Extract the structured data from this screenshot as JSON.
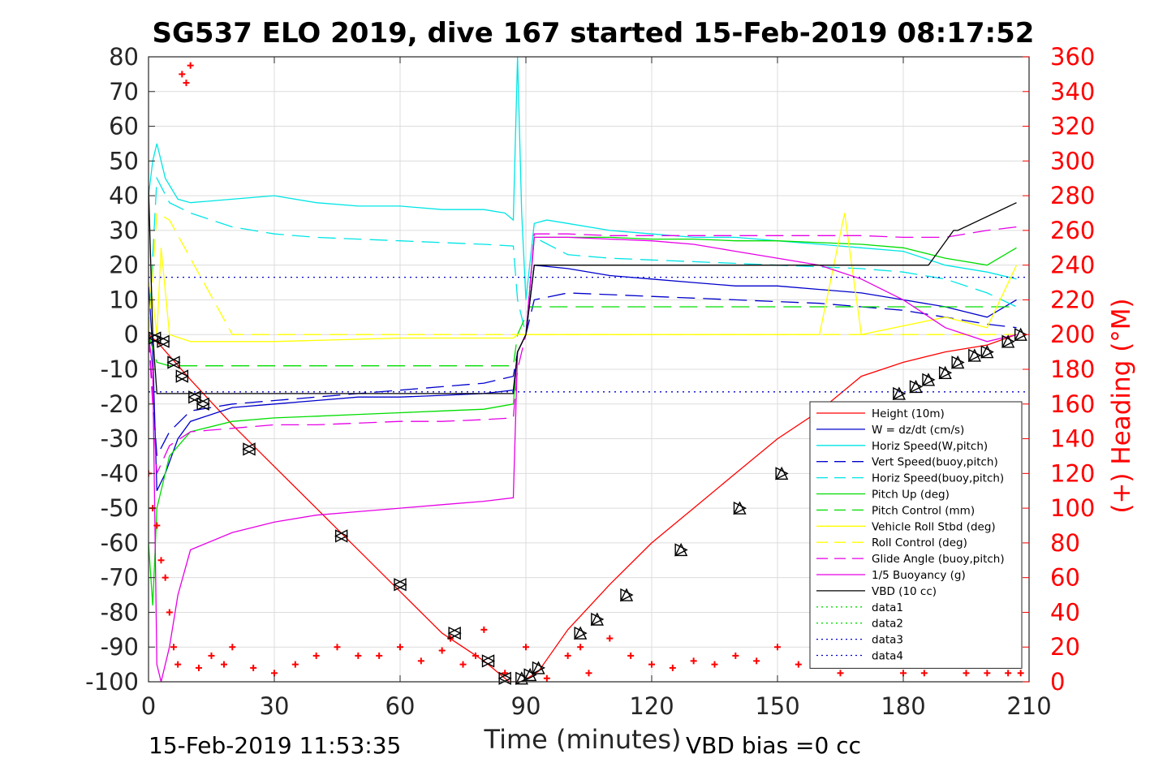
{
  "chart_data": {
    "type": "line",
    "title": "SG537 ELO 2019, dive 167 started 15-Feb-2019 08:17:52",
    "xlabel": "Time (minutes)",
    "ylabel_right": "(+) Heading (°M)",
    "xlim": [
      0,
      210
    ],
    "ylim": [
      -100,
      80
    ],
    "ylim_right": [
      0,
      360
    ],
    "x_ticks": [
      0,
      30,
      60,
      90,
      120,
      150,
      180,
      210
    ],
    "y_ticks": [
      80,
      70,
      60,
      50,
      40,
      30,
      20,
      10,
      0,
      -10,
      -20,
      -30,
      -40,
      -50,
      -60,
      -70,
      -80,
      -90,
      -100
    ],
    "y2_ticks": [
      360,
      340,
      320,
      300,
      280,
      260,
      240,
      220,
      200,
      180,
      160,
      140,
      120,
      100,
      80,
      60,
      40,
      20,
      0
    ],
    "grid": true,
    "legend_position": "bottom-right",
    "footer_left": "15-Feb-2019 11:53:35",
    "footer_right": "VBD bias =0 cc",
    "colors": {
      "red": "#ff0000",
      "blue": "#0000cc",
      "cyan": "#00e5e5",
      "green": "#00dd00",
      "yellow": "#ffff00",
      "magenta": "#e600e6",
      "black": "#000000"
    },
    "series": [
      {
        "name": "Height (10m)",
        "color": "#ff0000",
        "style": "solid",
        "x": [
          0,
          2,
          10,
          20,
          30,
          40,
          50,
          60,
          70,
          80,
          86,
          89,
          93,
          100,
          110,
          120,
          130,
          140,
          150,
          160,
          170,
          180,
          190,
          200,
          207
        ],
        "y": [
          0,
          -2,
          -13,
          -26,
          -38,
          -50,
          -62,
          -74,
          -86,
          -94,
          -100,
          -100,
          -97,
          -85,
          -72,
          -60,
          -50,
          -40,
          -30,
          -22,
          -12,
          -8,
          -5,
          -3,
          0
        ]
      },
      {
        "name": "W = dz/dt (cm/s)",
        "color": "#0000cc",
        "style": "solid",
        "x": [
          0,
          1,
          2,
          4,
          7,
          10,
          20,
          30,
          40,
          50,
          60,
          70,
          80,
          87,
          88,
          90,
          92,
          100,
          110,
          120,
          130,
          140,
          150,
          160,
          170,
          180,
          190,
          200,
          207
        ],
        "y": [
          15,
          -5,
          -45,
          -40,
          -30,
          -25,
          -21,
          -20,
          -19,
          -18,
          -18,
          -17.5,
          -17,
          -16,
          -5,
          0,
          20,
          19,
          17,
          16,
          15,
          14,
          14,
          13,
          12,
          10,
          8,
          5,
          10
        ]
      },
      {
        "name": "Horiz Speed(W,pitch)",
        "color": "#00e5e5",
        "style": "solid",
        "x": [
          0,
          1,
          2,
          4,
          7,
          10,
          20,
          30,
          40,
          50,
          60,
          70,
          80,
          85,
          87,
          88,
          89,
          90,
          92,
          95,
          100,
          110,
          120,
          130,
          140,
          150,
          160,
          170,
          180,
          190,
          200,
          207
        ],
        "y": [
          40,
          50,
          55,
          45,
          39,
          38,
          39,
          40,
          38,
          37,
          37,
          36,
          36,
          35,
          33,
          80,
          35,
          10,
          32,
          33,
          32,
          30,
          29,
          28,
          28,
          27,
          26,
          25,
          24,
          20,
          18,
          16
        ]
      },
      {
        "name": "Vert Speed(buoy,pitch)",
        "color": "#0000cc",
        "style": "dashed",
        "x": [
          0,
          2,
          5,
          10,
          20,
          30,
          40,
          50,
          60,
          70,
          80,
          87,
          88,
          90,
          92,
          100,
          110,
          120,
          130,
          140,
          150,
          160,
          170,
          180,
          190,
          200,
          207
        ],
        "y": [
          0,
          -35,
          -28,
          -22,
          -20,
          -19,
          -18,
          -17,
          -16,
          -15,
          -14,
          -12,
          -5,
          0,
          10,
          12,
          11.5,
          11,
          10.5,
          10,
          9.5,
          9,
          8,
          7,
          5,
          3,
          2
        ]
      },
      {
        "name": "Horiz Speed(buoy,pitch)",
        "color": "#00e5e5",
        "style": "dashed",
        "x": [
          0,
          2,
          5,
          10,
          20,
          30,
          40,
          50,
          60,
          70,
          80,
          87,
          88,
          90,
          92,
          100,
          110,
          120,
          130,
          140,
          150,
          160,
          170,
          180,
          190,
          200,
          207
        ],
        "y": [
          0,
          45,
          38,
          35,
          31,
          29,
          28,
          27.5,
          27,
          26.5,
          26,
          25.5,
          10,
          0,
          28,
          23,
          22,
          21.5,
          21,
          20.5,
          20,
          19.5,
          19,
          18,
          16,
          12,
          8
        ]
      },
      {
        "name": "Pitch Up (deg)",
        "color": "#00dd00",
        "style": "solid",
        "x": [
          0,
          1,
          2,
          5,
          10,
          20,
          30,
          40,
          50,
          60,
          70,
          80,
          87,
          88,
          90,
          92,
          100,
          110,
          120,
          130,
          140,
          150,
          160,
          170,
          180,
          190,
          200,
          207
        ],
        "y": [
          -60,
          -78,
          -50,
          -35,
          -28,
          -25,
          -24,
          -23.5,
          -23,
          -22.5,
          -22,
          -21.5,
          -20,
          -5,
          0,
          28,
          28,
          28,
          27.5,
          27.5,
          27,
          27,
          26.5,
          26,
          25,
          22,
          20,
          25
        ]
      },
      {
        "name": "Pitch Control (mm)",
        "color": "#00dd00",
        "style": "dashed",
        "x": [
          0,
          2,
          5,
          87,
          88,
          91,
          92,
          207
        ],
        "y": [
          0,
          -8,
          -9,
          -9,
          0,
          8,
          8,
          8
        ]
      },
      {
        "name": "Vehicle Roll Stbd (deg)",
        "color": "#ffff00",
        "style": "solid",
        "x": [
          0,
          1,
          2,
          3,
          5,
          10,
          30,
          60,
          87,
          88,
          92,
          100,
          130,
          160,
          166,
          170,
          190,
          200,
          207
        ],
        "y": [
          15,
          10,
          0,
          25,
          0,
          -2,
          -2,
          -1,
          -1,
          0,
          0,
          0,
          0,
          0,
          35,
          0,
          5,
          2,
          20
        ]
      },
      {
        "name": "Roll Control (deg)",
        "color": "#ffff00",
        "style": "dashed",
        "x": [
          0,
          2,
          5,
          20,
          60,
          87,
          92,
          150,
          207
        ],
        "y": [
          0,
          35,
          33,
          0,
          0,
          0,
          0,
          0,
          0
        ]
      },
      {
        "name": "Glide Angle (buoy,pitch)",
        "color": "#e600e6",
        "style": "dashed",
        "x": [
          0,
          2,
          5,
          10,
          20,
          30,
          40,
          50,
          60,
          70,
          80,
          87,
          88,
          90,
          92,
          100,
          110,
          120,
          130,
          140,
          150,
          160,
          170,
          180,
          190,
          200,
          207
        ],
        "y": [
          0,
          -40,
          -32,
          -28,
          -27,
          -26,
          -26,
          -25.5,
          -25,
          -25,
          -24.5,
          -24,
          -10,
          0,
          29,
          29,
          28.5,
          28.5,
          28.5,
          28.5,
          28.5,
          28.5,
          28.5,
          28,
          28,
          30,
          31
        ]
      },
      {
        "name": "1/5 Buoyancy (g)",
        "color": "#e600e6",
        "style": "solid",
        "x": [
          0,
          1,
          2,
          3,
          5,
          7,
          10,
          20,
          30,
          40,
          50,
          60,
          70,
          80,
          87,
          88,
          90,
          92,
          100,
          110,
          120,
          130,
          140,
          150,
          160,
          170,
          180,
          190,
          200,
          207
        ],
        "y": [
          0,
          -10,
          -95,
          -100,
          -90,
          -75,
          -62,
          -57,
          -54,
          -52,
          -51,
          -50,
          -49,
          -48,
          -47,
          -5,
          0,
          28,
          28,
          27.5,
          27,
          26,
          24,
          22,
          20,
          16,
          10,
          2,
          -2,
          0
        ]
      },
      {
        "name": "VBD (10 cc)",
        "color": "#000000",
        "style": "solid",
        "x": [
          0,
          1,
          2,
          86,
          87,
          88,
          90,
          92,
          110,
          185,
          186,
          192,
          193,
          207
        ],
        "y": [
          43,
          0,
          -17,
          -17,
          -17,
          -5,
          0,
          20,
          20,
          20,
          20,
          30,
          30,
          38
        ]
      },
      {
        "name": "data1",
        "color": "#00dd00",
        "style": "dotted",
        "x": [],
        "y": []
      },
      {
        "name": "data2",
        "color": "#00dd00",
        "style": "dotted",
        "x": [],
        "y": []
      },
      {
        "name": "data3",
        "color": "#0000cc",
        "style": "dotted",
        "x": [
          0,
          210
        ],
        "y": [
          16.5,
          16.5
        ]
      },
      {
        "name": "data4",
        "color": "#0000cc",
        "style": "dotted",
        "x": [
          0,
          210
        ],
        "y": [
          -16.5,
          -16.5
        ]
      }
    ],
    "heading_series": {
      "name": "(+) Heading (°M)",
      "color": "#ff0000",
      "axis": "right",
      "x": [
        0,
        1,
        2,
        3,
        4,
        5,
        6,
        7,
        8,
        9,
        10,
        12,
        15,
        18,
        20,
        25,
        30,
        35,
        40,
        45,
        50,
        55,
        60,
        65,
        70,
        72,
        75,
        78,
        80,
        85,
        90,
        95,
        100,
        103,
        105,
        110,
        115,
        120,
        125,
        130,
        135,
        140,
        145,
        150,
        155,
        160,
        165,
        170,
        175,
        180,
        185,
        190,
        195,
        200,
        205,
        208
      ],
      "y": [
        120,
        100,
        90,
        70,
        60,
        40,
        20,
        10,
        350,
        345,
        355,
        8,
        15,
        10,
        20,
        8,
        5,
        10,
        15,
        20,
        15,
        15,
        20,
        12,
        18,
        25,
        10,
        15,
        30,
        5,
        20,
        2,
        15,
        20,
        5,
        25,
        15,
        10,
        8,
        12,
        10,
        15,
        12,
        20,
        10,
        10,
        5,
        10,
        10,
        5,
        5,
        10,
        5,
        5,
        5,
        5
      ]
    },
    "markers": {
      "descent_x": [
        1.5,
        3.5,
        6,
        8,
        11,
        13,
        24,
        46,
        60,
        73,
        81,
        85
      ],
      "descent_y": [
        -1,
        -2,
        -8,
        -12,
        -18,
        -20,
        -33,
        -58,
        -72,
        -86,
        -94,
        -99
      ],
      "ascent_x": [
        89,
        91,
        93,
        103,
        107,
        114,
        127,
        141,
        151,
        179,
        183,
        186,
        190,
        193,
        197,
        200,
        205,
        208
      ],
      "ascent_y": [
        -99,
        -98,
        -96,
        -86,
        -82,
        -75,
        -62,
        -50,
        -40,
        -17,
        -15,
        -13,
        -11,
        -8,
        -6,
        -5,
        -2,
        0
      ]
    }
  }
}
